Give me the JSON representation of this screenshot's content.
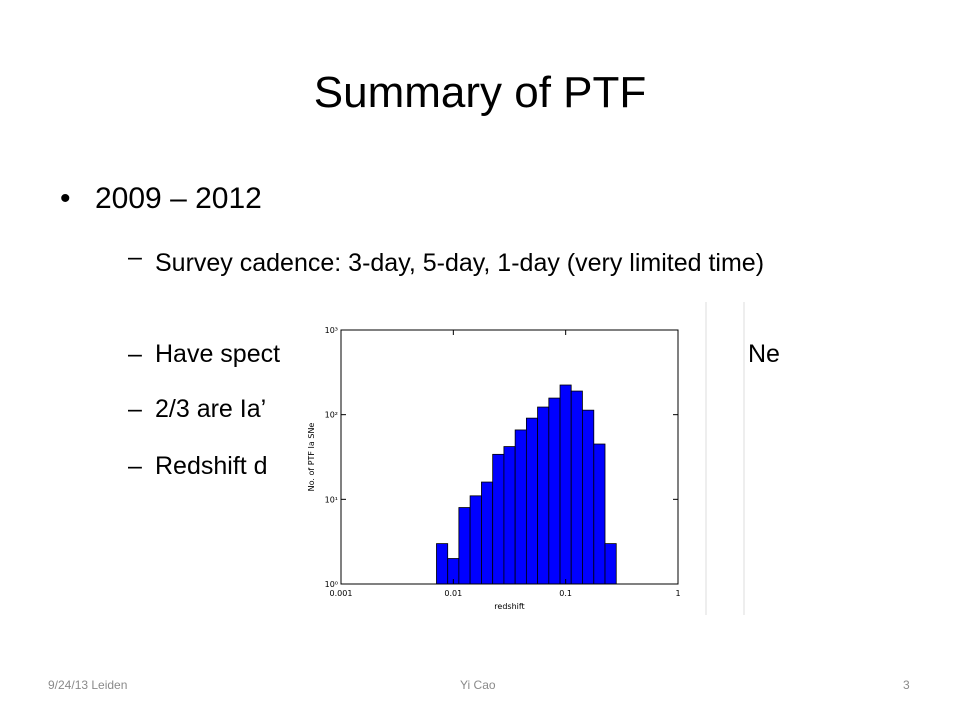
{
  "title": "Summary of PTF",
  "bullets": [
    {
      "text": "2009 – 2012",
      "items": [
        {
          "text": "Survey cadence: 3-day, 5-day, 1-day (very limited time)"
        },
        {
          "text": "Have spect",
          "tail": "Ne"
        },
        {
          "text": "2/3 are Ia’"
        },
        {
          "text": "Redshift d"
        }
      ]
    }
  ],
  "footer": {
    "date": "9/24/13 Leiden",
    "author": "Yi Cao",
    "page": "3"
  },
  "chart_data": {
    "type": "histogram",
    "x_label": "redshift",
    "y_label": "No. of PTF Ia SNe",
    "bins": [
      0.00708,
      0.00891,
      0.0112,
      0.0141,
      0.0178,
      0.0224,
      0.0282,
      0.0355,
      0.0447,
      0.0562,
      0.0708,
      0.0891,
      0.112,
      0.141,
      0.178,
      0.224,
      0.282
    ],
    "values": [
      3,
      2,
      8,
      11,
      16,
      34,
      42,
      66,
      91,
      123,
      157,
      224,
      190,
      113,
      45,
      3
    ],
    "color": "#0000ff",
    "xscale": "log",
    "yscale": "log",
    "xlim": [
      0.001,
      1
    ],
    "ylim": [
      1,
      1000
    ],
    "xticks": [
      0.001,
      0.01,
      0.1,
      1
    ],
    "yticks": [
      {
        "value": 1,
        "label": "10⁰"
      },
      {
        "value": 10,
        "label": "10¹"
      },
      {
        "value": 100,
        "label": "10²"
      },
      {
        "value": 1000,
        "label": "10³"
      }
    ]
  }
}
